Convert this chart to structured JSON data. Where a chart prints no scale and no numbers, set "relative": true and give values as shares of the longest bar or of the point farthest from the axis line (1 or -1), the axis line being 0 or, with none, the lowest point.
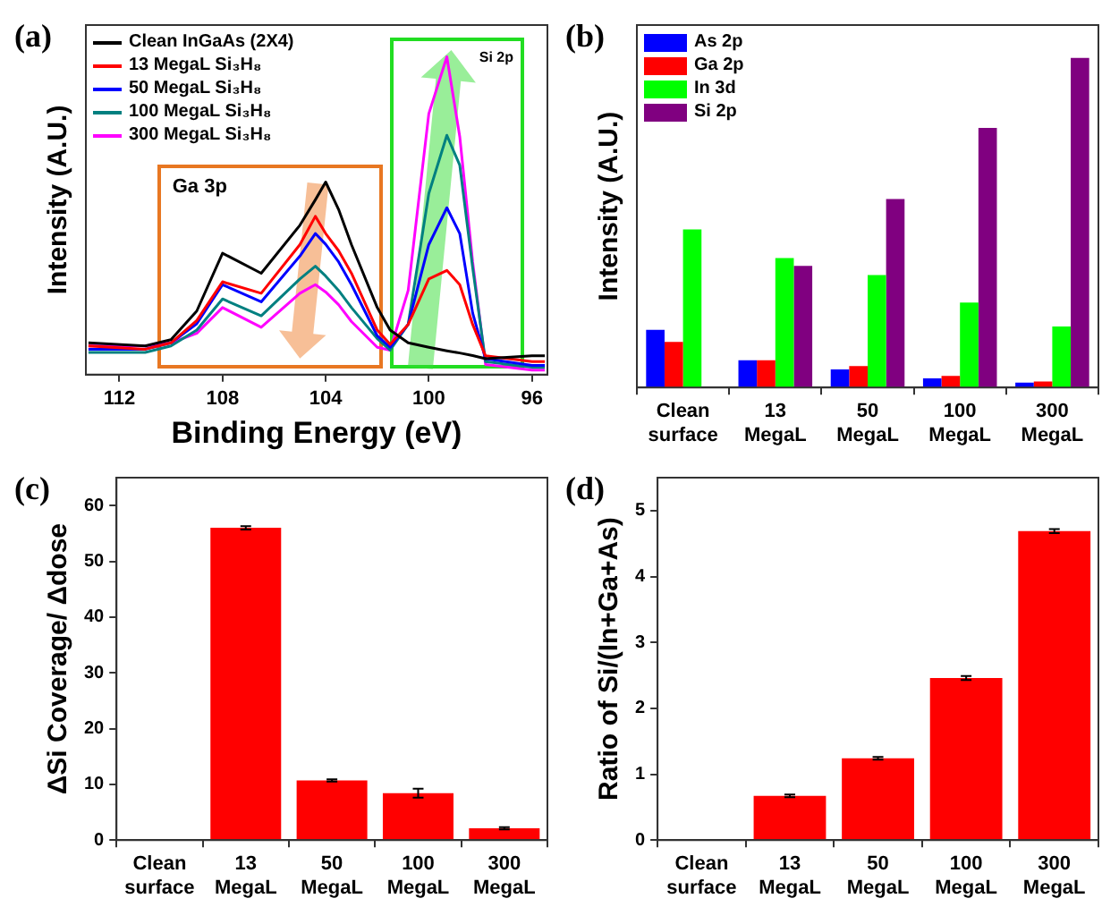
{
  "chart_data": [
    {
      "type": "line",
      "title": "(a)",
      "xlabel": "Binding Energy (eV)",
      "ylabel": "Intensity (A.U.)",
      "relative": true,
      "xlim": [
        113.3,
        95.4
      ],
      "xticks": [
        112,
        108,
        104,
        100,
        96
      ],
      "legend": "top left",
      "x": [
        113.2,
        111,
        110,
        109,
        108,
        106.5,
        105,
        104.4,
        104,
        103.5,
        103,
        102,
        101.5,
        100.8,
        100,
        99.3,
        98.8,
        98.3,
        97.8,
        96,
        95.5
      ],
      "series": [
        {
          "name": "Clean InGaAs (2X4)",
          "color": "#000000",
          "values": [
            0.1,
            0.09,
            0.11,
            0.2,
            0.382,
            0.319,
            0.47,
            0.55,
            0.606,
            0.52,
            0.409,
            0.211,
            0.14,
            0.1,
            0.086,
            0.075,
            0.068,
            0.06,
            0.05,
            0.059,
            0.059
          ]
        },
        {
          "name": "13 MegaL Si₃H₈",
          "color": "#ff0000",
          "values": [
            0.09,
            0.08,
            0.1,
            0.17,
            0.292,
            0.256,
            0.409,
            0.498,
            0.444,
            0.39,
            0.319,
            0.14,
            0.095,
            0.158,
            0.301,
            0.328,
            0.283,
            0.158,
            0.059,
            0.041,
            0.041
          ]
        },
        {
          "name": "50 MegaL Si₃H₈",
          "color": "#0000ff",
          "values": [
            0.08,
            0.08,
            0.1,
            0.16,
            0.283,
            0.229,
            0.373,
            0.444,
            0.41,
            0.355,
            0.283,
            0.122,
            0.086,
            0.158,
            0.409,
            0.525,
            0.444,
            0.194,
            0.05,
            0.029,
            0.029
          ]
        },
        {
          "name": "100 MegaL Si₃H₈",
          "color": "#008080",
          "values": [
            0.07,
            0.07,
            0.09,
            0.14,
            0.238,
            0.185,
            0.301,
            0.341,
            0.31,
            0.265,
            0.211,
            0.113,
            0.077,
            0.158,
            0.57,
            0.753,
            0.659,
            0.337,
            0.041,
            0.023,
            0.023
          ]
        },
        {
          "name": "300 MegaL Si₃H₈",
          "color": "#ff00ff",
          "values": [
            0.09,
            0.09,
            0.1,
            0.13,
            0.211,
            0.149,
            0.256,
            0.283,
            0.26,
            0.22,
            0.167,
            0.086,
            0.077,
            0.265,
            0.821,
            1,
            0.749,
            0.355,
            0.032,
            0.014,
            0.014
          ]
        }
      ],
      "annotations": [
        "Ga 3p",
        "Si 2p"
      ]
    },
    {
      "type": "bar",
      "title": "(b)",
      "ylabel": "Intensity (A.U.)",
      "relative": true,
      "legend": "top left",
      "categories": [
        "Clean surface",
        "13 MegaL",
        "50 MegaL",
        "100 MegaL",
        "300 MegaL"
      ],
      "series": [
        {
          "name": "As 2p",
          "color": "#0000ff",
          "values": [
            0.175,
            0.083,
            0.055,
            0.028,
            0.015
          ]
        },
        {
          "name": "Ga 2p",
          "color": "#ff0000",
          "values": [
            0.138,
            0.083,
            0.065,
            0.035,
            0.018
          ]
        },
        {
          "name": "In 3d",
          "color": "#00ff00",
          "values": [
            0.48,
            0.393,
            0.341,
            0.258,
            0.185
          ]
        },
        {
          "name": "Si 2p",
          "color": "#800080",
          "values": [
            null,
            0.369,
            0.572,
            0.788,
            1
          ]
        }
      ]
    },
    {
      "type": "bar",
      "title": "(c)",
      "ylabel": "ΔSi Coverage/ Δdose",
      "ylim": [
        0,
        65
      ],
      "yticks": [
        0,
        10,
        20,
        30,
        40,
        50,
        60
      ],
      "categories": [
        "Clean surface",
        "13 MegaL",
        "50 MegaL",
        "100 MegaL",
        "300 MegaL"
      ],
      "series": [
        {
          "color": "#ff0000",
          "values": [
            null,
            56,
            10.7,
            8.4,
            2.1
          ],
          "errors": [
            null,
            0.3,
            0.2,
            0.8,
            0.2
          ]
        }
      ]
    },
    {
      "type": "bar",
      "title": "(d)",
      "ylabel": "Ratio of Si/(In+Ga+As)",
      "ylim": [
        0,
        5.5
      ],
      "yticks": [
        0,
        1,
        2,
        3,
        4,
        5
      ],
      "categories": [
        "Clean surface",
        "13 MegaL",
        "50 MegaL",
        "100 MegaL",
        "300 MegaL"
      ],
      "series": [
        {
          "color": "#ff0000",
          "values": [
            null,
            0.67,
            1.24,
            2.46,
            4.69
          ],
          "errors": [
            null,
            0.02,
            0.02,
            0.03,
            0.03
          ]
        }
      ]
    }
  ]
}
